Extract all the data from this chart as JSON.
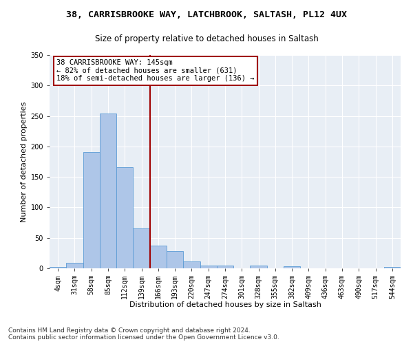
{
  "title1": "38, CARRISBROOKE WAY, LATCHBROOK, SALTASH, PL12 4UX",
  "title2": "Size of property relative to detached houses in Saltash",
  "xlabel": "Distribution of detached houses by size in Saltash",
  "ylabel": "Number of detached properties",
  "footnote1": "Contains HM Land Registry data © Crown copyright and database right 2024.",
  "footnote2": "Contains public sector information licensed under the Open Government Licence v3.0.",
  "bin_labels": [
    "4sqm",
    "31sqm",
    "58sqm",
    "85sqm",
    "112sqm",
    "139sqm",
    "166sqm",
    "193sqm",
    "220sqm",
    "247sqm",
    "274sqm",
    "301sqm",
    "328sqm",
    "355sqm",
    "382sqm",
    "409sqm",
    "436sqm",
    "463sqm",
    "490sqm",
    "517sqm",
    "544sqm"
  ],
  "bar_values": [
    2,
    9,
    191,
    254,
    166,
    65,
    37,
    28,
    11,
    5,
    5,
    0,
    4,
    0,
    3,
    0,
    0,
    0,
    0,
    0,
    2
  ],
  "bar_color": "#aec6e8",
  "bar_edge_color": "#5b9bd5",
  "vline_x": 5.5,
  "vline_color": "#a00000",
  "annotation_text": "38 CARRISBROOKE WAY: 145sqm\n← 82% of detached houses are smaller (631)\n18% of semi-detached houses are larger (136) →",
  "annotation_box_color": "#ffffff",
  "annotation_box_edge": "#a00000",
  "ylim": [
    0,
    350
  ],
  "yticks": [
    0,
    50,
    100,
    150,
    200,
    250,
    300,
    350
  ],
  "background_color": "#e8eef5",
  "grid_color": "#ffffff",
  "title1_fontsize": 9.5,
  "title2_fontsize": 8.5,
  "xlabel_fontsize": 8,
  "ylabel_fontsize": 8,
  "tick_fontsize": 7,
  "annotation_fontsize": 7.5,
  "footnote_fontsize": 6.5
}
